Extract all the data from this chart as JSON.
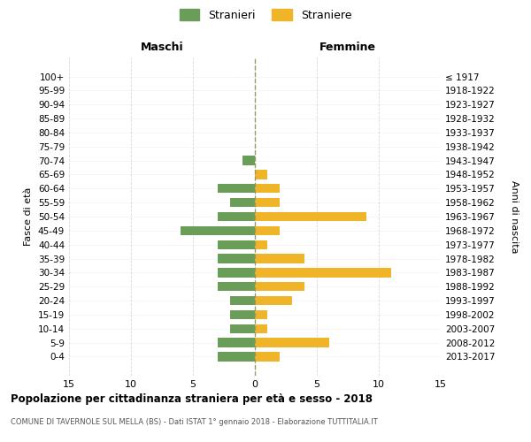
{
  "age_groups": [
    "100+",
    "95-99",
    "90-94",
    "85-89",
    "80-84",
    "75-79",
    "70-74",
    "65-69",
    "60-64",
    "55-59",
    "50-54",
    "45-49",
    "40-44",
    "35-39",
    "30-34",
    "25-29",
    "20-24",
    "15-19",
    "10-14",
    "5-9",
    "0-4"
  ],
  "birth_years": [
    "≤ 1917",
    "1918-1922",
    "1923-1927",
    "1928-1932",
    "1933-1937",
    "1938-1942",
    "1943-1947",
    "1948-1952",
    "1953-1957",
    "1958-1962",
    "1963-1967",
    "1968-1972",
    "1973-1977",
    "1978-1982",
    "1983-1987",
    "1988-1992",
    "1993-1997",
    "1998-2002",
    "2003-2007",
    "2008-2012",
    "2013-2017"
  ],
  "males": [
    0,
    0,
    0,
    0,
    0,
    0,
    1,
    0,
    3,
    2,
    3,
    6,
    3,
    3,
    3,
    3,
    2,
    2,
    2,
    3,
    3
  ],
  "females": [
    0,
    0,
    0,
    0,
    0,
    0,
    0,
    1,
    2,
    2,
    9,
    2,
    1,
    4,
    11,
    4,
    3,
    1,
    1,
    6,
    2
  ],
  "male_color": "#6a9e58",
  "female_color": "#f0b429",
  "male_label": "Stranieri",
  "female_label": "Straniere",
  "title": "Popolazione per cittadinanza straniera per età e sesso - 2018",
  "subtitle": "COMUNE DI TAVERNOLE SUL MELLA (BS) - Dati ISTAT 1° gennaio 2018 - Elaborazione TUTTITALIA.IT",
  "header_left": "Maschi",
  "header_right": "Femmine",
  "ylabel_left": "Fasce di età",
  "ylabel_right": "Anni di nascita",
  "xlim": 15,
  "background_color": "#ffffff",
  "grid_color": "#d0d0d0",
  "center_line_color": "#999966"
}
